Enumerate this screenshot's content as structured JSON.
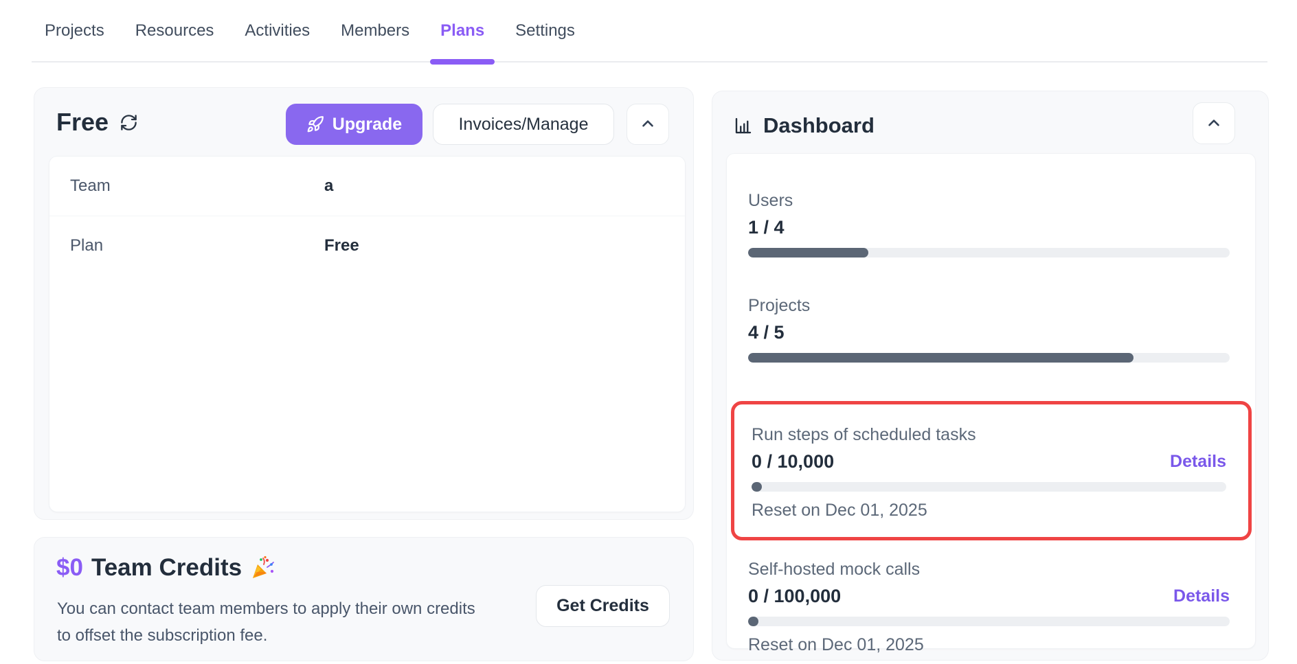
{
  "tabs": [
    {
      "label": "Projects",
      "active": false
    },
    {
      "label": "Resources",
      "active": false
    },
    {
      "label": "Activities",
      "active": false
    },
    {
      "label": "Members",
      "active": false
    },
    {
      "label": "Plans",
      "active": true
    },
    {
      "label": "Settings",
      "active": false
    }
  ],
  "plan_card": {
    "plan_name": "Free",
    "upgrade_button": "Upgrade",
    "invoices_button": "Invoices/Manage",
    "rows": [
      {
        "label": "Team",
        "value": "a"
      },
      {
        "label": "Plan",
        "value": "Free"
      }
    ]
  },
  "credits_card": {
    "amount": "$0",
    "title": "Team Credits",
    "description": "You can contact team members to apply their own credits to offset the subscription fee.",
    "get_credits_button": "Get Credits"
  },
  "dashboard": {
    "title": "Dashboard",
    "meters": [
      {
        "label": "Users",
        "value_text": "1 / 4",
        "percent": 25
      },
      {
        "label": "Projects",
        "value_text": "4 / 5",
        "percent": 80
      },
      {
        "label": "Run steps of scheduled tasks",
        "value_text": "0 / 10,000",
        "percent": 0,
        "details_label": "Details",
        "reset_text": "Reset on Dec 01, 2025",
        "highlighted": true
      },
      {
        "label": "Self-hosted mock calls",
        "value_text": "0 / 100,000",
        "percent": 0,
        "details_label": "Details",
        "reset_text": "Reset on Dec 01, 2025",
        "highlighted": false
      }
    ]
  },
  "colors": {
    "accent_purple": "#8a5cf5",
    "link_purple": "#7a58ea",
    "highlight_red": "#ef4444",
    "progress_fill": "#5b6675",
    "progress_track": "#edeff2"
  }
}
